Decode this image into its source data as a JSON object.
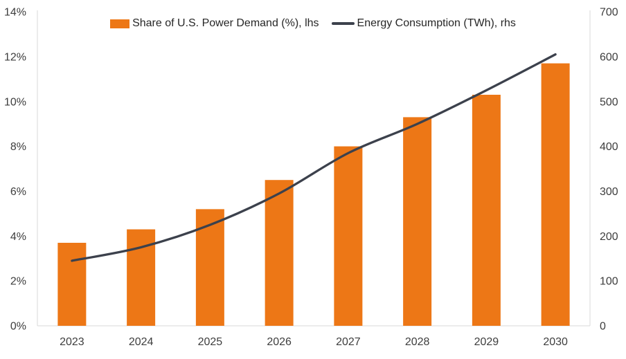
{
  "chart_data": {
    "type": "combo-bar-line",
    "title": "",
    "categories": [
      "2023",
      "2024",
      "2025",
      "2026",
      "2027",
      "2028",
      "2029",
      "2030"
    ],
    "series": [
      {
        "name": "Share of U.S. Power Demand (%), lhs",
        "type": "bar",
        "axis": "left",
        "color": "#ED7716",
        "values": [
          3.7,
          4.3,
          5.2,
          6.5,
          8.0,
          9.3,
          10.3,
          11.7
        ]
      },
      {
        "name": "Energy Consumption (TWh), rhs",
        "type": "line",
        "axis": "right",
        "color": "#3C414C",
        "values": [
          145,
          175,
          225,
          295,
          385,
          450,
          525,
          605
        ]
      }
    ],
    "left_axis": {
      "unit": "%",
      "min": 0,
      "max": 14,
      "tick_labels": [
        "0%",
        "2%",
        "4%",
        "6%",
        "8%",
        "10%",
        "12%",
        "14%"
      ],
      "tick_values": [
        0,
        2,
        4,
        6,
        8,
        10,
        12,
        14
      ]
    },
    "right_axis": {
      "unit": "TWh",
      "min": 0,
      "max": 700,
      "tick_labels": [
        "0",
        "100",
        "200",
        "300",
        "400",
        "500",
        "600",
        "700"
      ],
      "tick_values": [
        0,
        100,
        200,
        300,
        400,
        500,
        600,
        700
      ]
    },
    "grid": false,
    "legend_position": "top-center",
    "background": "#FFFFFF",
    "axis_line_color": "#D9D9D9",
    "text_color": "#3D3D3D",
    "line_smooth": true
  }
}
